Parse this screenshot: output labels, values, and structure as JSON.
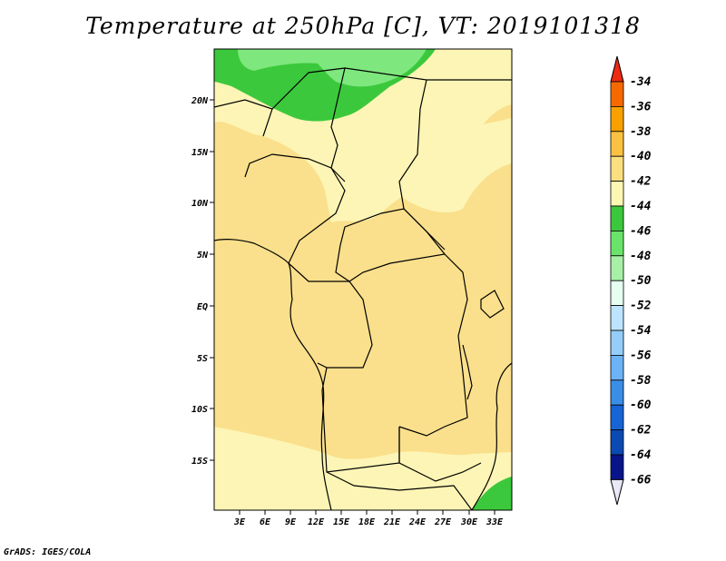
{
  "title": "Temperature at 250hPa [C], VT: 2019101318",
  "credit": "GrADS: IGES/COLA",
  "map": {
    "lat_labels": [
      "20N",
      "15N",
      "10N",
      "5N",
      "EQ",
      "5S",
      "10S",
      "15S"
    ],
    "lon_labels": [
      "3E",
      "6E",
      "9E",
      "12E",
      "15E",
      "18E",
      "21E",
      "24E",
      "27E",
      "30E",
      "33E"
    ],
    "fill_colors": {
      "land_base": "#fae08c",
      "warm_band": "#fdf5b5",
      "cold_green": "#3cc83c",
      "cold_light_green": "#7ee77e"
    }
  },
  "colorbar": {
    "labels": [
      "-34",
      "-36",
      "-38",
      "-40",
      "-42",
      "-44",
      "-46",
      "-48",
      "-50",
      "-52",
      "-54",
      "-56",
      "-58",
      "-60",
      "-62",
      "-64",
      "-66"
    ],
    "colors": [
      "#ee2a12",
      "#f46a00",
      "#f8a000",
      "#fbc142",
      "#fbdf7e",
      "#fdf7b4",
      "#3cc83c",
      "#6ae36a",
      "#a8f0a8",
      "#e6fff0",
      "#bde4ff",
      "#94cdf8",
      "#6cb2f4",
      "#3b8ee6",
      "#1765d4",
      "#0b4ab2",
      "#08158a"
    ]
  }
}
